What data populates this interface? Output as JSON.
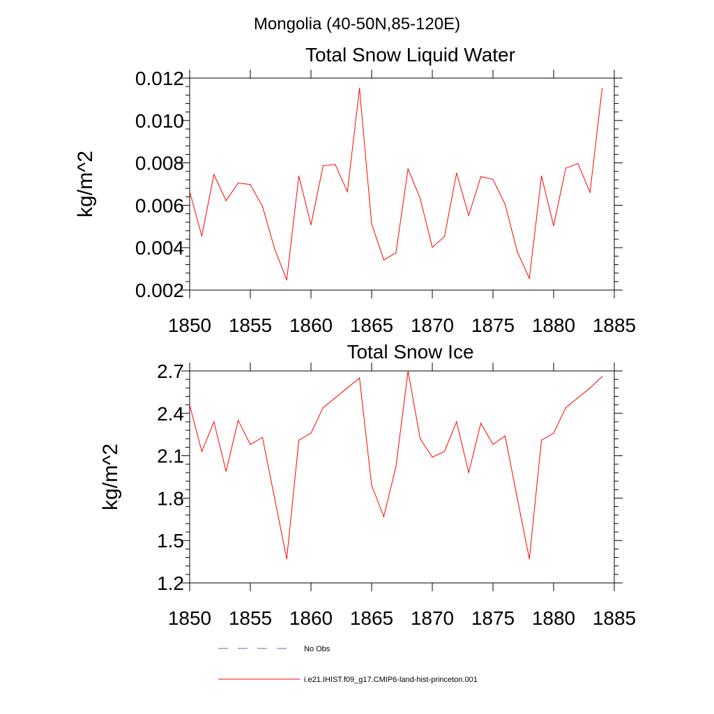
{
  "figure": {
    "suptitle": "Mongolia (40-50N,85-120E)"
  },
  "colors": {
    "model_line": "#ff0000",
    "obs_line": "#6a6aa8",
    "axes": "#000000"
  },
  "legend": {
    "items": [
      {
        "label": "No Obs",
        "style": "dashed"
      },
      {
        "label": "i.e21.IHIST.f09_g17.CMIP6-land-hist-princeton.001",
        "style": "solid"
      }
    ]
  },
  "chart_data": [
    {
      "type": "line",
      "title": "Total Snow Liquid Water",
      "xlabel": "",
      "ylabel": "kg/m^2",
      "xlim": [
        1850,
        1885
      ],
      "ylim": [
        0.002,
        0.012
      ],
      "xticks": [
        1850,
        1855,
        1860,
        1865,
        1870,
        1875,
        1880,
        1885
      ],
      "yticks": [
        0.002,
        0.004,
        0.006,
        0.008,
        0.01,
        0.012
      ],
      "ytick_labels": [
        "0.002",
        "0.004",
        "0.006",
        "0.008",
        "0.010",
        "0.012"
      ],
      "grid": false,
      "x": [
        1850,
        1851,
        1852,
        1853,
        1854,
        1855,
        1856,
        1857,
        1858,
        1859,
        1860,
        1861,
        1862,
        1863,
        1864,
        1865,
        1866,
        1867,
        1868,
        1869,
        1870,
        1871,
        1872,
        1873,
        1874,
        1875,
        1876,
        1877,
        1878,
        1879,
        1880,
        1881,
        1882,
        1883,
        1884
      ],
      "series": [
        {
          "values": [
            0.00665,
            0.00455,
            0.00745,
            0.00622,
            0.00705,
            0.00698,
            0.00595,
            0.00395,
            0.00248,
            0.00738,
            0.00508,
            0.00787,
            0.00792,
            0.00664,
            0.01152,
            0.00513,
            0.00342,
            0.00375,
            0.00772,
            0.00632,
            0.00402,
            0.00452,
            0.00752,
            0.00552,
            0.00735,
            0.00722,
            0.00605,
            0.00382,
            0.00255,
            0.00738,
            0.00503,
            0.00775,
            0.00797,
            0.00662,
            0.01152
          ]
        }
      ]
    },
    {
      "type": "line",
      "title": "Total Snow Ice",
      "xlabel": "",
      "ylabel": "kg/m^2",
      "xlim": [
        1850,
        1885
      ],
      "ylim": [
        1.2,
        2.7
      ],
      "xticks": [
        1850,
        1855,
        1860,
        1865,
        1870,
        1875,
        1880,
        1885
      ],
      "yticks": [
        1.2,
        1.5,
        1.8,
        2.1,
        2.4,
        2.7
      ],
      "ytick_labels": [
        "1.2",
        "1.5",
        "1.8",
        "2.1",
        "2.4",
        "2.7"
      ],
      "grid": false,
      "x": [
        1850,
        1851,
        1852,
        1853,
        1854,
        1855,
        1856,
        1857,
        1858,
        1859,
        1860,
        1861,
        1862,
        1863,
        1864,
        1865,
        1866,
        1867,
        1868,
        1869,
        1870,
        1871,
        1872,
        1873,
        1874,
        1875,
        1876,
        1877,
        1878,
        1879,
        1880,
        1881,
        1882,
        1883,
        1884
      ],
      "series": [
        {
          "values": [
            2.46,
            2.13,
            2.34,
            1.99,
            2.35,
            2.18,
            2.23,
            1.8,
            1.37,
            2.21,
            2.26,
            2.44,
            2.51,
            2.58,
            2.65,
            1.89,
            1.67,
            2.02,
            2.7,
            2.22,
            2.09,
            2.13,
            2.34,
            1.98,
            2.33,
            2.18,
            2.24,
            1.8,
            1.37,
            2.21,
            2.26,
            2.44,
            2.51,
            2.58,
            2.66
          ]
        }
      ]
    }
  ]
}
